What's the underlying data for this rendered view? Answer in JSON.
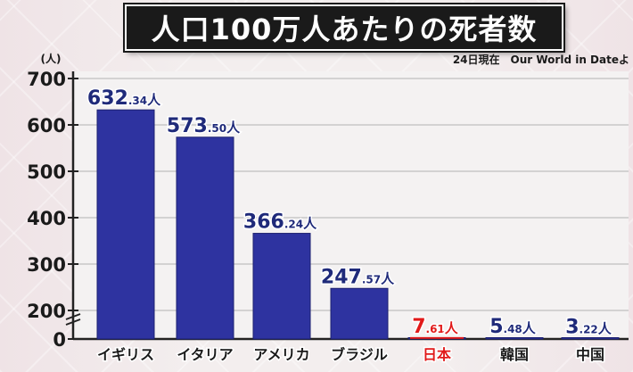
{
  "header": {
    "title": "人口100万人あたりの死者数",
    "source": "24日現在　Our World in Dateよ"
  },
  "chart_data": {
    "type": "bar",
    "title": "人口100万人あたりの死者数",
    "ylabel": "(人)",
    "xlabel": "",
    "ylim": [
      0,
      700
    ],
    "yticks": [
      0,
      200,
      300,
      400,
      500,
      600,
      700
    ],
    "grid": true,
    "categories": [
      "イギリス",
      "イタリア",
      "アメリカ",
      "ブラジル",
      "日本",
      "韓国",
      "中国"
    ],
    "values": [
      632.34,
      573.5,
      366.24,
      247.57,
      7.61,
      5.48,
      3.22
    ],
    "value_labels": [
      {
        "int": "632",
        "dec": ".34",
        "unit": "人"
      },
      {
        "int": "573",
        "dec": ".50",
        "unit": "人"
      },
      {
        "int": "366",
        "dec": ".24",
        "unit": "人"
      },
      {
        "int": "247",
        "dec": ".57",
        "unit": "人"
      },
      {
        "int": "7",
        "dec": ".61",
        "unit": "人"
      },
      {
        "int": "5",
        "dec": ".48",
        "unit": "人"
      },
      {
        "int": "3",
        "dec": ".22",
        "unit": "人"
      }
    ],
    "highlight_index": 4,
    "colors": {
      "bar": "#2e33a0",
      "bar_edge": "#1c2070",
      "label": "#1f2a7a",
      "highlight": "#e11a1a",
      "axis": "#222222",
      "grid": "#c8c8c8"
    }
  }
}
